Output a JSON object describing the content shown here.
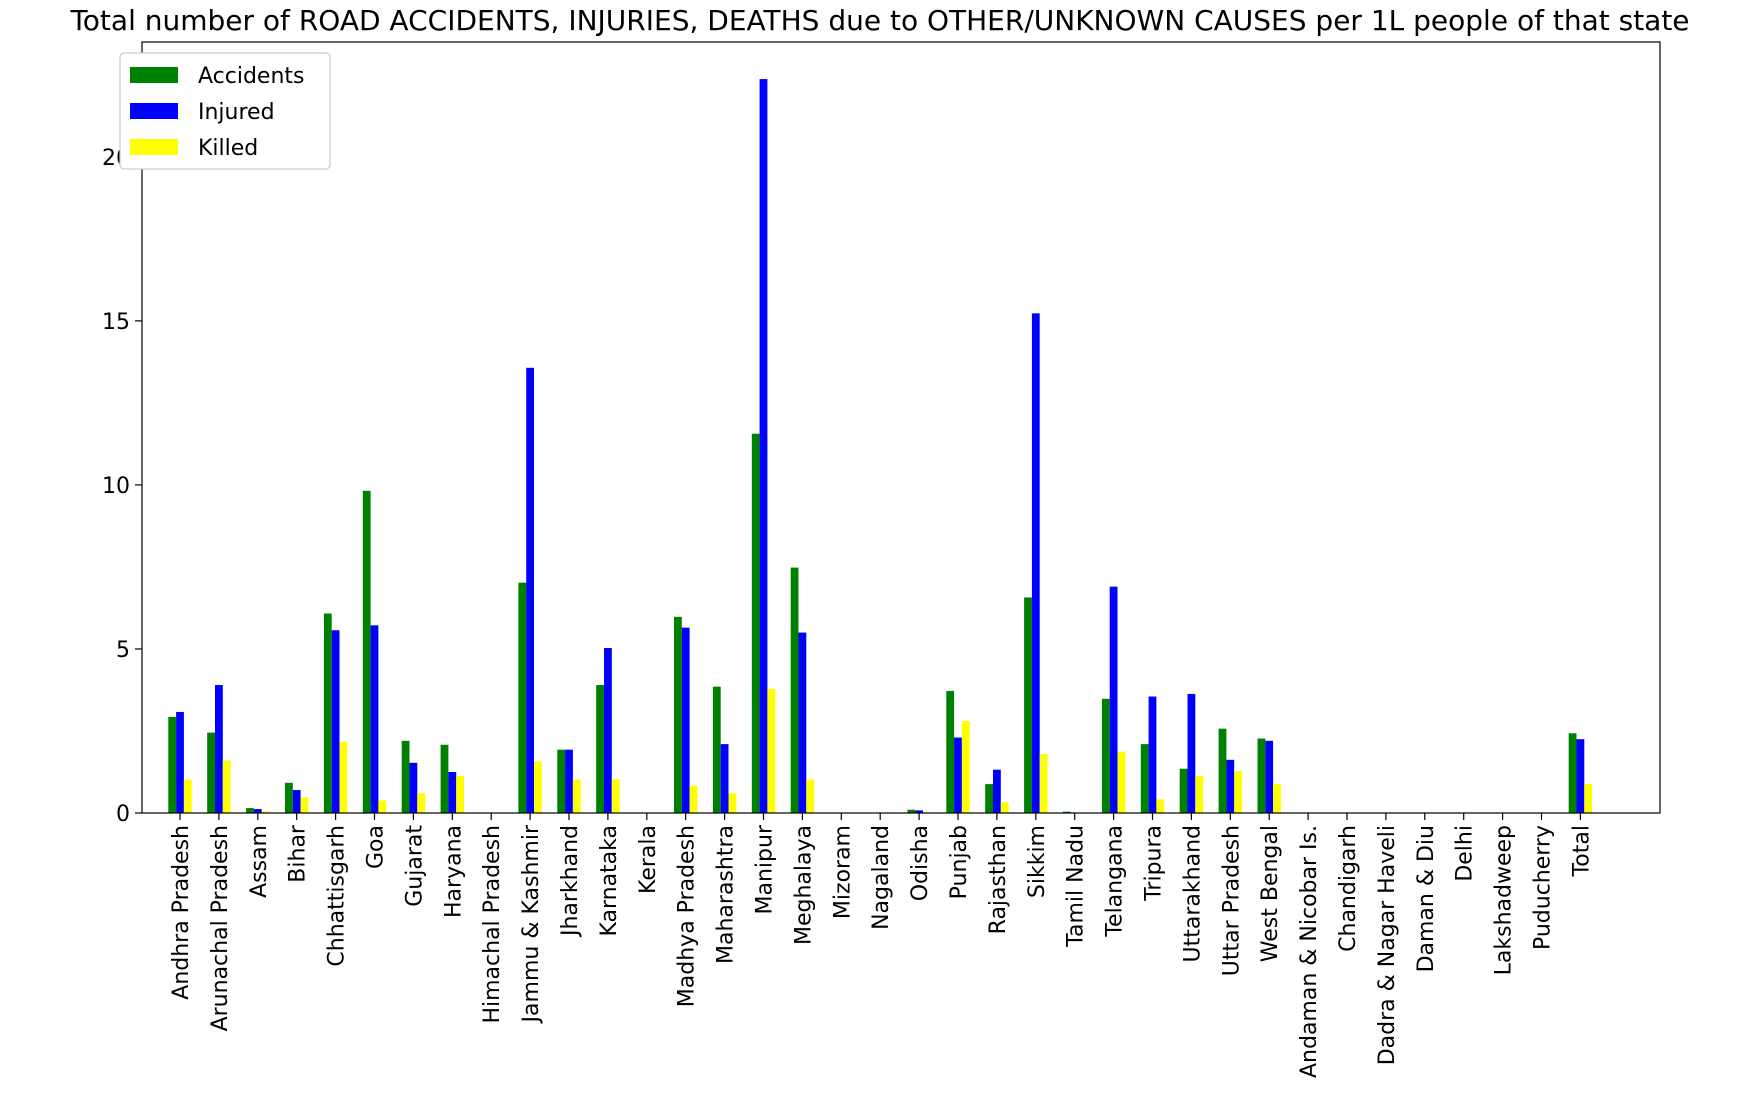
{
  "chart_data": {
    "type": "bar",
    "title": "Total number of ROAD ACCIDENTS, INJURIES, DEATHS due to OTHER/UNKNOWN CAUSES per 1L people of that state",
    "xlabel": "",
    "ylabel": "",
    "ylim": [
      0,
      23.5
    ],
    "yticks": [
      0,
      5,
      10,
      15,
      20
    ],
    "grid": false,
    "legend_position": "top-left",
    "categories": [
      "Andhra Pradesh",
      "Arunachal Pradesh",
      "Assam",
      "Bihar",
      "Chhattisgarh",
      "Goa",
      "Gujarat",
      "Haryana",
      "Himachal Pradesh",
      "Jammu & Kashmir",
      "Jharkhand",
      "Karnataka",
      "Kerala",
      "Madhya Pradesh",
      "Maharashtra",
      "Manipur",
      "Meghalaya",
      "Mizoram",
      "Nagaland",
      "Odisha",
      "Punjab",
      "Rajasthan",
      "Sikkim",
      "Tamil Nadu",
      "Telangana",
      "Tripura",
      "Uttarakhand",
      "Uttar Pradesh",
      "West Bengal",
      "Andaman & Nicobar Is.",
      "Chandigarh",
      "Dadra & Nagar Haveli",
      "Daman & Diu",
      "Delhi",
      "Lakshadweep",
      "Puducherry",
      "Total"
    ],
    "series": [
      {
        "name": "Accidents",
        "color": "#008000",
        "values": [
          2.93,
          2.45,
          0.15,
          0.92,
          6.08,
          9.82,
          2.2,
          2.08,
          0,
          7.02,
          1.93,
          3.9,
          0,
          5.98,
          3.85,
          11.56,
          7.48,
          0,
          0,
          0.1,
          3.72,
          0.88,
          6.57,
          0.04,
          3.48,
          2.1,
          1.35,
          2.57,
          2.27,
          0,
          0,
          0,
          0,
          0,
          0,
          0,
          2.43
        ]
      },
      {
        "name": "Injured",
        "color": "#0000ff",
        "values": [
          3.08,
          3.9,
          0.12,
          0.7,
          5.57,
          5.72,
          1.53,
          1.25,
          0,
          13.57,
          1.93,
          5.03,
          0,
          5.65,
          2.1,
          22.37,
          5.5,
          0,
          0,
          0.08,
          2.3,
          1.32,
          15.23,
          0,
          6.9,
          3.55,
          3.63,
          1.62,
          2.2,
          0,
          0,
          0,
          0,
          0,
          0,
          0,
          2.25
        ]
      },
      {
        "name": "Killed",
        "color": "#ffff00",
        "values": [
          1.02,
          1.6,
          0.05,
          0.48,
          2.17,
          0.38,
          0.6,
          1.13,
          0,
          1.57,
          1.02,
          1.03,
          0,
          0.83,
          0.6,
          3.78,
          1.02,
          0,
          0,
          0.03,
          2.8,
          0.33,
          1.8,
          0,
          1.87,
          0.42,
          1.13,
          1.28,
          0.88,
          0,
          0,
          0,
          0,
          0,
          0,
          0,
          0.88
        ]
      }
    ]
  }
}
